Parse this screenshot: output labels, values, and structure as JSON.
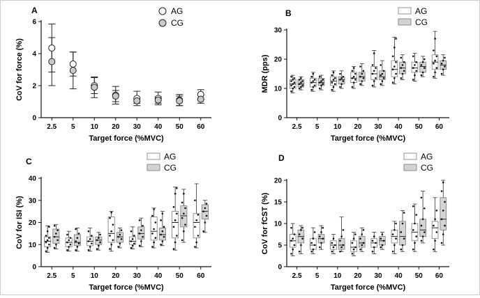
{
  "figure": {
    "bg": "#ffffff"
  },
  "chart_data": [
    {
      "id": "A",
      "panel_label": "A",
      "type": "scatter",
      "categories": [
        "2.5",
        "5",
        "10",
        "20",
        "30",
        "40",
        "50",
        "60"
      ],
      "xlabel": "Target force (%MVC)",
      "ylabel": "CoV for force (%)",
      "ylim": [
        0,
        6
      ],
      "yticks": [
        "0",
        "2",
        "4",
        "6"
      ],
      "legend_position": "top-right",
      "grid": false,
      "series": [
        {
          "name": "AG",
          "fill": "#ffffff",
          "mean": [
            4.35,
            3.35,
            2.0,
            1.4,
            1.2,
            1.2,
            1.1,
            1.45
          ],
          "sd": [
            1.5,
            0.75,
            0.5,
            0.55,
            0.45,
            0.4,
            0.35,
            0.3
          ]
        },
        {
          "name": "CG",
          "fill": "#c8c8c8",
          "mean": [
            3.5,
            2.95,
            1.9,
            1.35,
            1.05,
            1.1,
            1.05,
            1.15
          ],
          "sd": [
            1.5,
            1.15,
            0.65,
            0.35,
            0.15,
            0.2,
            0.3,
            0.25
          ]
        }
      ]
    },
    {
      "id": "B",
      "panel_label": "B",
      "type": "box",
      "categories": [
        "2.5",
        "5",
        "10",
        "20",
        "30",
        "40",
        "50",
        "60"
      ],
      "xlabel": "Target force (%MVC)",
      "ylabel": "MDR (pps)",
      "ylim": [
        0,
        30
      ],
      "yticks": [
        "0",
        "10",
        "20",
        "30"
      ],
      "legend_position": "top-right",
      "grid": false,
      "series": [
        {
          "name": "AG",
          "fill": "#ffffff",
          "boxes": [
            {
              "min": 8.5,
              "q1": 10.0,
              "med": 11.5,
              "q3": 13.0,
              "max": 14.5,
              "pts": [
                9,
                10,
                10.5,
                11,
                11.5,
                12,
                12.5,
                13,
                13.5,
                14
              ]
            },
            {
              "min": 9.0,
              "q1": 10.5,
              "med": 12.0,
              "q3": 13.5,
              "max": 15.5,
              "pts": [
                9.5,
                10.5,
                11,
                12,
                12.5,
                13,
                14,
                15
              ]
            },
            {
              "min": 9.0,
              "q1": 11.0,
              "med": 12.5,
              "q3": 14.0,
              "max": 16.0,
              "pts": [
                9.5,
                10.5,
                11.5,
                12,
                13,
                13.5,
                14.5,
                15.5
              ]
            },
            {
              "min": 10.0,
              "q1": 12.0,
              "med": 13.5,
              "q3": 15.5,
              "max": 17.5,
              "pts": [
                10.5,
                12,
                13,
                13.5,
                14,
                15,
                16,
                17
              ]
            },
            {
              "min": 10.5,
              "q1": 13.0,
              "med": 15.0,
              "q3": 17.5,
              "max": 23.0,
              "pts": [
                11,
                12.5,
                13.5,
                15,
                16,
                17,
                18,
                22
              ]
            },
            {
              "min": 11.5,
              "q1": 14.0,
              "med": 16.5,
              "q3": 19.5,
              "max": 27.5,
              "pts": [
                12,
                13.5,
                15,
                16.5,
                17.5,
                19,
                21,
                24,
                27
              ]
            },
            {
              "min": 12.5,
              "q1": 15.5,
              "med": 17.0,
              "q3": 19.0,
              "max": 22.0,
              "pts": [
                13,
                14.5,
                16,
                17,
                18,
                19,
                21
              ]
            },
            {
              "min": 13.5,
              "q1": 16.5,
              "med": 19.0,
              "q3": 21.5,
              "max": 29.5,
              "pts": [
                14,
                15.5,
                17,
                18.5,
                19.5,
                21,
                23,
                27
              ]
            }
          ]
        },
        {
          "name": "CG",
          "fill": "#d4d4d4",
          "boxes": [
            {
              "min": 9.5,
              "q1": 10.5,
              "med": 11.5,
              "q3": 13.0,
              "max": 14.0,
              "pts": [
                10,
                10.5,
                11,
                11.5,
                12,
                12.5,
                13,
                13.5
              ]
            },
            {
              "min": 9.5,
              "q1": 11.0,
              "med": 12.0,
              "q3": 13.5,
              "max": 14.5,
              "pts": [
                10,
                11,
                11.5,
                12,
                12.5,
                13,
                14
              ]
            },
            {
              "min": 10.0,
              "q1": 11.5,
              "med": 13.0,
              "q3": 14.0,
              "max": 16.0,
              "pts": [
                10.5,
                11.5,
                12.5,
                13,
                13.5,
                14,
                15
              ]
            },
            {
              "min": 11.0,
              "q1": 12.5,
              "med": 14.0,
              "q3": 15.5,
              "max": 18.5,
              "pts": [
                11.5,
                12.5,
                13.5,
                14,
                15,
                16,
                17.5
              ]
            },
            {
              "min": 11.0,
              "q1": 13.0,
              "med": 14.0,
              "q3": 16.0,
              "max": 19.5,
              "pts": [
                11.5,
                12.5,
                13.5,
                14.5,
                15,
                16,
                18
              ]
            },
            {
              "min": 13.0,
              "q1": 15.0,
              "med": 17.0,
              "q3": 19.0,
              "max": 21.5,
              "pts": [
                13.5,
                15,
                16,
                17,
                18,
                19,
                20.5
              ]
            },
            {
              "min": 14.0,
              "q1": 15.5,
              "med": 17.5,
              "q3": 19.0,
              "max": 21.0,
              "pts": [
                14.5,
                15.5,
                17,
                18,
                19,
                20
              ]
            },
            {
              "min": 14.5,
              "q1": 16.5,
              "med": 18.0,
              "q3": 19.5,
              "max": 21.5,
              "pts": [
                15,
                16.5,
                17.5,
                18.5,
                19.5,
                20.5
              ]
            }
          ]
        }
      ]
    },
    {
      "id": "C",
      "panel_label": "C",
      "type": "box",
      "categories": [
        "2.5",
        "5",
        "10",
        "20",
        "30",
        "40",
        "50",
        "60"
      ],
      "xlabel": "Target force (%MVC)",
      "ylabel": "CoV for ISI (%)",
      "ylim": [
        0,
        40
      ],
      "yticks": [
        "0",
        "10",
        "20",
        "30",
        "40"
      ],
      "legend_position": "top-right",
      "grid": false,
      "series": [
        {
          "name": "AG",
          "fill": "#ffffff",
          "boxes": [
            {
              "min": 6.5,
              "q1": 9.0,
              "med": 11.5,
              "q3": 13.5,
              "max": 18.5,
              "pts": [
                7,
                8.5,
                10,
                11,
                12,
                13,
                14,
                16,
                18
              ]
            },
            {
              "min": 7.0,
              "q1": 9.0,
              "med": 11.0,
              "q3": 13.0,
              "max": 16.0,
              "pts": [
                7.5,
                9,
                10,
                11,
                12,
                13,
                14.5
              ]
            },
            {
              "min": 7.0,
              "q1": 9.5,
              "med": 11.5,
              "q3": 13.5,
              "max": 17.5,
              "pts": [
                7.5,
                9,
                10.5,
                11.5,
                12.5,
                14,
                16
              ]
            },
            {
              "min": 7.0,
              "q1": 11.0,
              "med": 15.0,
              "q3": 22.5,
              "max": 25.0,
              "pts": [
                8,
                10,
                12,
                14,
                16,
                19,
                22,
                24.5
              ]
            },
            {
              "min": 8.0,
              "q1": 10.0,
              "med": 11.5,
              "q3": 13.5,
              "max": 18.0,
              "pts": [
                8.5,
                9.5,
                10.5,
                11.5,
                12.5,
                14,
                16
              ]
            },
            {
              "min": 8.5,
              "q1": 12.0,
              "med": 16.0,
              "q3": 22.5,
              "max": 26.5,
              "pts": [
                9,
                11,
                13,
                15,
                17,
                20,
                23,
                26
              ]
            },
            {
              "min": 7.5,
              "q1": 13.0,
              "med": 20.0,
              "q3": 25.0,
              "max": 36.0,
              "pts": [
                8,
                11,
                14,
                18,
                21,
                24,
                27,
                33,
                35.5
              ]
            },
            {
              "min": 8.5,
              "q1": 13.0,
              "med": 20.0,
              "q3": 24.0,
              "max": 37.5,
              "pts": [
                9,
                11,
                14,
                18,
                21,
                23.5,
                30
              ]
            }
          ]
        },
        {
          "name": "CG",
          "fill": "#d4d4d4",
          "boxes": [
            {
              "min": 8.0,
              "q1": 10.5,
              "med": 13.5,
              "q3": 17.0,
              "max": 19.0,
              "pts": [
                8.5,
                10,
                12,
                13.5,
                15,
                16.5,
                18.5
              ]
            },
            {
              "min": 7.0,
              "q1": 9.5,
              "med": 11.0,
              "q3": 14.5,
              "max": 17.5,
              "pts": [
                7.5,
                9,
                10.5,
                11.5,
                13,
                15,
                17
              ]
            },
            {
              "min": 7.5,
              "q1": 10.0,
              "med": 12.0,
              "q3": 13.5,
              "max": 15.5,
              "pts": [
                8,
                9.5,
                11,
                12,
                13,
                14.5
              ]
            },
            {
              "min": 8.5,
              "q1": 11.0,
              "med": 13.5,
              "q3": 15.5,
              "max": 17.5,
              "pts": [
                9,
                10.5,
                12.5,
                13.5,
                14.5,
                16.5
              ]
            },
            {
              "min": 9.0,
              "q1": 12.5,
              "med": 15.0,
              "q3": 18.0,
              "max": 22.0,
              "pts": [
                9.5,
                11.5,
                13.5,
                15,
                16.5,
                18.5,
                21
              ]
            },
            {
              "min": 9.5,
              "q1": 12.0,
              "med": 14.5,
              "q3": 17.5,
              "max": 25.0,
              "pts": [
                10,
                11.5,
                13.5,
                14.5,
                16,
                18,
                21,
                24
              ]
            },
            {
              "min": 11.0,
              "q1": 18.0,
              "med": 23.0,
              "q3": 27.5,
              "max": 35.0,
              "pts": [
                12,
                16,
                19,
                22,
                24,
                26.5,
                29,
                33
              ]
            },
            {
              "min": 15.5,
              "q1": 21.5,
              "med": 25.0,
              "q3": 28.0,
              "max": 30.0,
              "pts": [
                16,
                20,
                23,
                25,
                26.5,
                28.5
              ]
            }
          ]
        }
      ]
    },
    {
      "id": "D",
      "panel_label": "D",
      "type": "box",
      "categories": [
        "2.5",
        "5",
        "10",
        "20",
        "30",
        "40",
        "50",
        "60"
      ],
      "xlabel": "Target force (%MVC)",
      "ylabel": "CoV for fCST (%)",
      "ylim": [
        0,
        20
      ],
      "yticks": [
        "0",
        "5",
        "10",
        "15",
        "20"
      ],
      "legend_position": "top-right",
      "grid": false,
      "series": [
        {
          "name": "AG",
          "fill": "#ffffff",
          "boxes": [
            {
              "min": 2.5,
              "q1": 4.5,
              "med": 6.0,
              "q3": 7.5,
              "max": 10.0,
              "pts": [
                3,
                4,
                5,
                6,
                6.5,
                7.5,
                9
              ]
            },
            {
              "min": 3.0,
              "q1": 4.0,
              "med": 5.0,
              "q3": 6.5,
              "max": 9.0,
              "pts": [
                3.5,
                4,
                5,
                5.5,
                6.5,
                8
              ]
            },
            {
              "min": 3.0,
              "q1": 4.0,
              "med": 5.0,
              "q3": 6.0,
              "max": 7.5,
              "pts": [
                3.5,
                4.5,
                5,
                5.5,
                6.5
              ]
            },
            {
              "min": 2.5,
              "q1": 3.5,
              "med": 4.5,
              "q3": 6.0,
              "max": 8.0,
              "pts": [
                3,
                4,
                4.5,
                5.5,
                6.5,
                7.5
              ]
            },
            {
              "min": 3.0,
              "q1": 4.5,
              "med": 5.5,
              "q3": 6.5,
              "max": 8.0,
              "pts": [
                3.5,
                4.5,
                5.5,
                6,
                7
              ]
            },
            {
              "min": 3.0,
              "q1": 5.5,
              "med": 7.0,
              "q3": 8.5,
              "max": 10.5,
              "pts": [
                3.5,
                5,
                6.5,
                7.5,
                8.5,
                10
              ]
            },
            {
              "min": 3.5,
              "q1": 6.0,
              "med": 8.0,
              "q3": 10.0,
              "max": 14.5,
              "pts": [
                4,
                5.5,
                7,
                8.5,
                10,
                12,
                14
              ]
            },
            {
              "min": 3.5,
              "q1": 6.5,
              "med": 9.0,
              "q3": 10.5,
              "max": 16.0,
              "pts": [
                4,
                6,
                8,
                9.5,
                11,
                13
              ]
            }
          ]
        },
        {
          "name": "CG",
          "fill": "#d4d4d4",
          "boxes": [
            {
              "min": 3.0,
              "q1": 5.5,
              "med": 7.0,
              "q3": 8.5,
              "max": 9.5,
              "pts": [
                3.5,
                5,
                6.5,
                7.5,
                8.5,
                9
              ]
            },
            {
              "min": 4.0,
              "q1": 5.5,
              "med": 6.5,
              "q3": 7.5,
              "max": 9.5,
              "pts": [
                4.5,
                5.5,
                6.5,
                7,
                8,
                9
              ]
            },
            {
              "min": 3.5,
              "q1": 4.0,
              "med": 5.0,
              "q3": 6.5,
              "max": 11.5,
              "pts": [
                3.5,
                4.5,
                5,
                6,
                7,
                8.5
              ]
            },
            {
              "min": 3.5,
              "q1": 4.5,
              "med": 5.5,
              "q3": 7.0,
              "max": 9.0,
              "pts": [
                4,
                5,
                5.5,
                6.5,
                7.5,
                8.5
              ]
            },
            {
              "min": 4.0,
              "q1": 5.0,
              "med": 6.0,
              "q3": 7.0,
              "max": 8.0,
              "pts": [
                4.5,
                5,
                6,
                6.5,
                7.5
              ]
            },
            {
              "min": 3.5,
              "q1": 5.0,
              "med": 7.0,
              "q3": 10.5,
              "max": 13.0,
              "pts": [
                4,
                5,
                6.5,
                8,
                10,
                12.5
              ]
            },
            {
              "min": 5.5,
              "q1": 7.0,
              "med": 8.5,
              "q3": 11.0,
              "max": 17.5,
              "pts": [
                6,
                7,
                8,
                9.5,
                11,
                13.5,
                16
              ]
            },
            {
              "min": 5.0,
              "q1": 8.5,
              "med": 11.0,
              "q3": 16.0,
              "max": 20.0,
              "pts": [
                5.5,
                7.5,
                9.5,
                11,
                13,
                15,
                17.5,
                19.5
              ]
            }
          ]
        }
      ]
    }
  ]
}
